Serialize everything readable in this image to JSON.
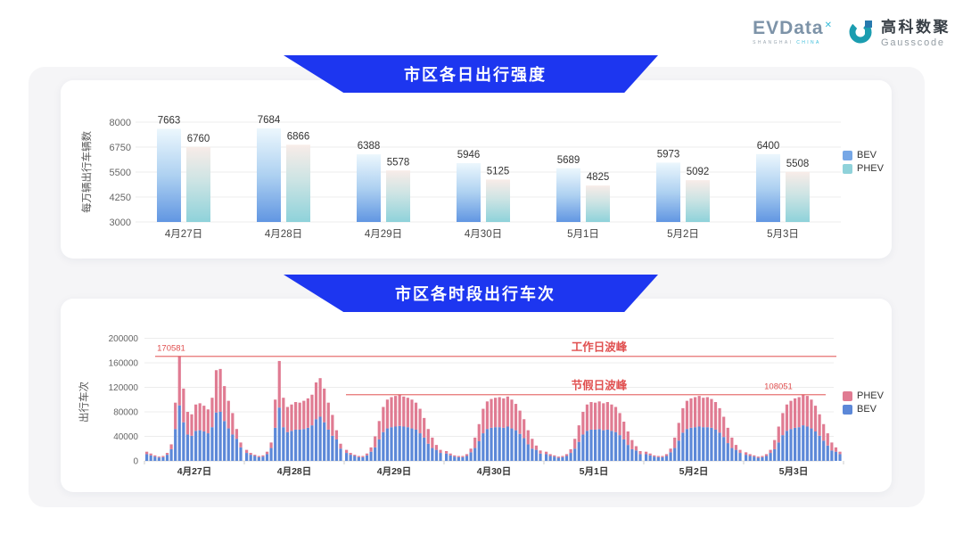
{
  "header": {
    "evdata": {
      "text": "EVData",
      "mark": "✕",
      "sub1": "SHANGHAI",
      "sub2": "CHINA"
    },
    "gausscode": {
      "cn": "高科数聚",
      "en": "Gausscode"
    }
  },
  "banners": {
    "daily": "市区各日出行强度",
    "hourly": "市区各时段出行车次"
  },
  "colors": {
    "banner_blue": "#1d36f0",
    "bev_gradient": [
      "#ecf7fd",
      "#aed1f1",
      "#6196e2"
    ],
    "phev_gradient": [
      "#f8ece8",
      "#cde4e4",
      "#8ed2da"
    ],
    "legend_bev": "#76a7e6",
    "legend_phev": "#8fd2da",
    "bev_solid": "#5c88d8",
    "phev_solid": "#e07b92",
    "annotation_red": "#e04f4f",
    "grid": "#ececec",
    "axis": "#d8d8d8",
    "tick_text": "#666666",
    "value_text": "#333333"
  },
  "chart_data": [
    {
      "type": "bar",
      "title": "市区各日出行强度",
      "ylabel": "每万辆出行车辆数",
      "categories": [
        "4月27日",
        "4月28日",
        "4月29日",
        "4月30日",
        "5月1日",
        "5月2日",
        "5月3日"
      ],
      "series": [
        {
          "name": "BEV",
          "values": [
            7663,
            7684,
            6388,
            5946,
            5689,
            5973,
            6400
          ]
        },
        {
          "name": "PHEV",
          "values": [
            6760,
            6866,
            5578,
            5125,
            4825,
            5092,
            5508
          ]
        }
      ],
      "ylim": [
        3000,
        8000
      ],
      "yticks": [
        3000,
        4250,
        5500,
        6750,
        8000
      ],
      "grid": "on",
      "legend_position": "right"
    },
    {
      "type": "stacked-bar",
      "title": "市区各时段出行车次",
      "ylabel": "出行车次",
      "categories": [
        "4月27日",
        "4月28日",
        "4月29日",
        "4月30日",
        "5月1日",
        "5月2日",
        "5月3日"
      ],
      "hours_per_day": 24,
      "ylim": [
        0,
        200000
      ],
      "yticks": [
        0,
        40000,
        80000,
        120000,
        160000,
        200000
      ],
      "grid": "on",
      "legend_position": "right",
      "annotations": [
        {
          "name": "workday-peak",
          "label": "工作日波峰",
          "value": 170581,
          "value_label": "170581"
        },
        {
          "name": "holiday-peak",
          "label": "节假日波峰",
          "value": 108051,
          "value_label": "108051"
        }
      ],
      "series": [
        {
          "name": "BEV",
          "values_by_day": [
            [
              11000,
              9000,
              7000,
              5500,
              6000,
              10000,
              19000,
              52000,
              90581,
              63000,
              43000,
              41000,
              49000,
              50000,
              48000,
              45000,
              55000,
              79000,
              80000,
              65000,
              53000,
              43000,
              36000,
              22000
            ],
            [
              13000,
              10000,
              8000,
              6000,
              7000,
              11000,
              21000,
              54000,
              87000,
              55000,
              47000,
              49000,
              51000,
              51000,
              52000,
              54000,
              58000,
              68000,
              72000,
              63000,
              51000,
              41000,
              35000,
              20000
            ],
            [
              13000,
              10000,
              8000,
              6000,
              6000,
              9000,
              15000,
              22000,
              35000,
              47000,
              53000,
              55000,
              56000,
              57000,
              56000,
              55000,
              53000,
              51000,
              45000,
              38000,
              28000,
              21000,
              18000,
              13000
            ],
            [
              12000,
              9000,
              7000,
              6000,
              6000,
              8000,
              14000,
              21000,
              32000,
              45000,
              52000,
              54000,
              55000,
              55000,
              54000,
              56000,
              53000,
              50000,
              44000,
              37000,
              27000,
              20000,
              18000,
              12000
            ],
            [
              11000,
              8000,
              7000,
              5000,
              6000,
              8000,
              13000,
              20000,
              31000,
              43000,
              49000,
              51000,
              51000,
              52000,
              50000,
              51000,
              49000,
              47000,
              42000,
              35000,
              26000,
              19000,
              17000,
              11000
            ],
            [
              11000,
              9000,
              7000,
              6000,
              6000,
              8000,
              14000,
              21000,
              33000,
              46000,
              52000,
              54000,
              55000,
              56000,
              55000,
              55000,
              54000,
              51000,
              46000,
              39000,
              29000,
              21000,
              18000,
              13000
            ],
            [
              10000,
              8000,
              7000,
              5000,
              6000,
              8000,
              13000,
              19000,
              30000,
              42000,
              49000,
              52000,
              54000,
              55000,
              58051,
              56000,
              53000,
              48000,
              41000,
              33000,
              25000,
              17000,
              15000,
              11000
            ]
          ]
        },
        {
          "name": "PHEV",
          "values_by_day": [
            [
              4000,
              3000,
              2000,
              1500,
              2000,
              3000,
              8000,
              43000,
              80000,
              55000,
              37000,
              35000,
              43000,
              44000,
              42000,
              39000,
              48000,
              69000,
              70000,
              57000,
              45000,
              35000,
              16000,
              8000
            ],
            [
              5000,
              3000,
              2000,
              2000,
              2000,
              4000,
              9000,
              46000,
              76000,
              48000,
              41000,
              43000,
              45000,
              44000,
              46000,
              48000,
              50000,
              60000,
              63000,
              55000,
              44000,
              34000,
              15000,
              8000
            ],
            [
              5000,
              3000,
              2000,
              2000,
              2000,
              3000,
              7000,
              18000,
              30000,
              41000,
              47000,
              49000,
              50000,
              51000,
              49000,
              48000,
              47000,
              44000,
              40000,
              32000,
              24000,
              17000,
              8000,
              5000
            ],
            [
              4000,
              3000,
              2000,
              2000,
              2000,
              3000,
              6000,
              17000,
              28000,
              40000,
              45000,
              47000,
              48000,
              49000,
              48000,
              49000,
              47000,
              43000,
              38000,
              31000,
              23000,
              16000,
              7000,
              5000
            ],
            [
              4000,
              3000,
              2000,
              2000,
              2000,
              3000,
              6000,
              16000,
              27000,
              37000,
              43000,
              45000,
              44000,
              45000,
              44000,
              45000,
              43000,
              41000,
              36000,
              29000,
              22000,
              15000,
              7000,
              5000
            ],
            [
              4000,
              3000,
              2000,
              2000,
              2000,
              3000,
              6000,
              17000,
              29000,
              40000,
              46000,
              48000,
              49000,
              50000,
              48000,
              49000,
              47000,
              45000,
              40000,
              33000,
              25000,
              17000,
              8000,
              5000
            ],
            [
              4000,
              3000,
              2000,
              2000,
              2000,
              3000,
              5000,
              15000,
              26000,
              36000,
              43000,
              46000,
              48000,
              49000,
              50000,
              50000,
              47000,
              42000,
              35000,
              27000,
              20000,
              13000,
              7000,
              4000
            ]
          ]
        }
      ]
    }
  ]
}
